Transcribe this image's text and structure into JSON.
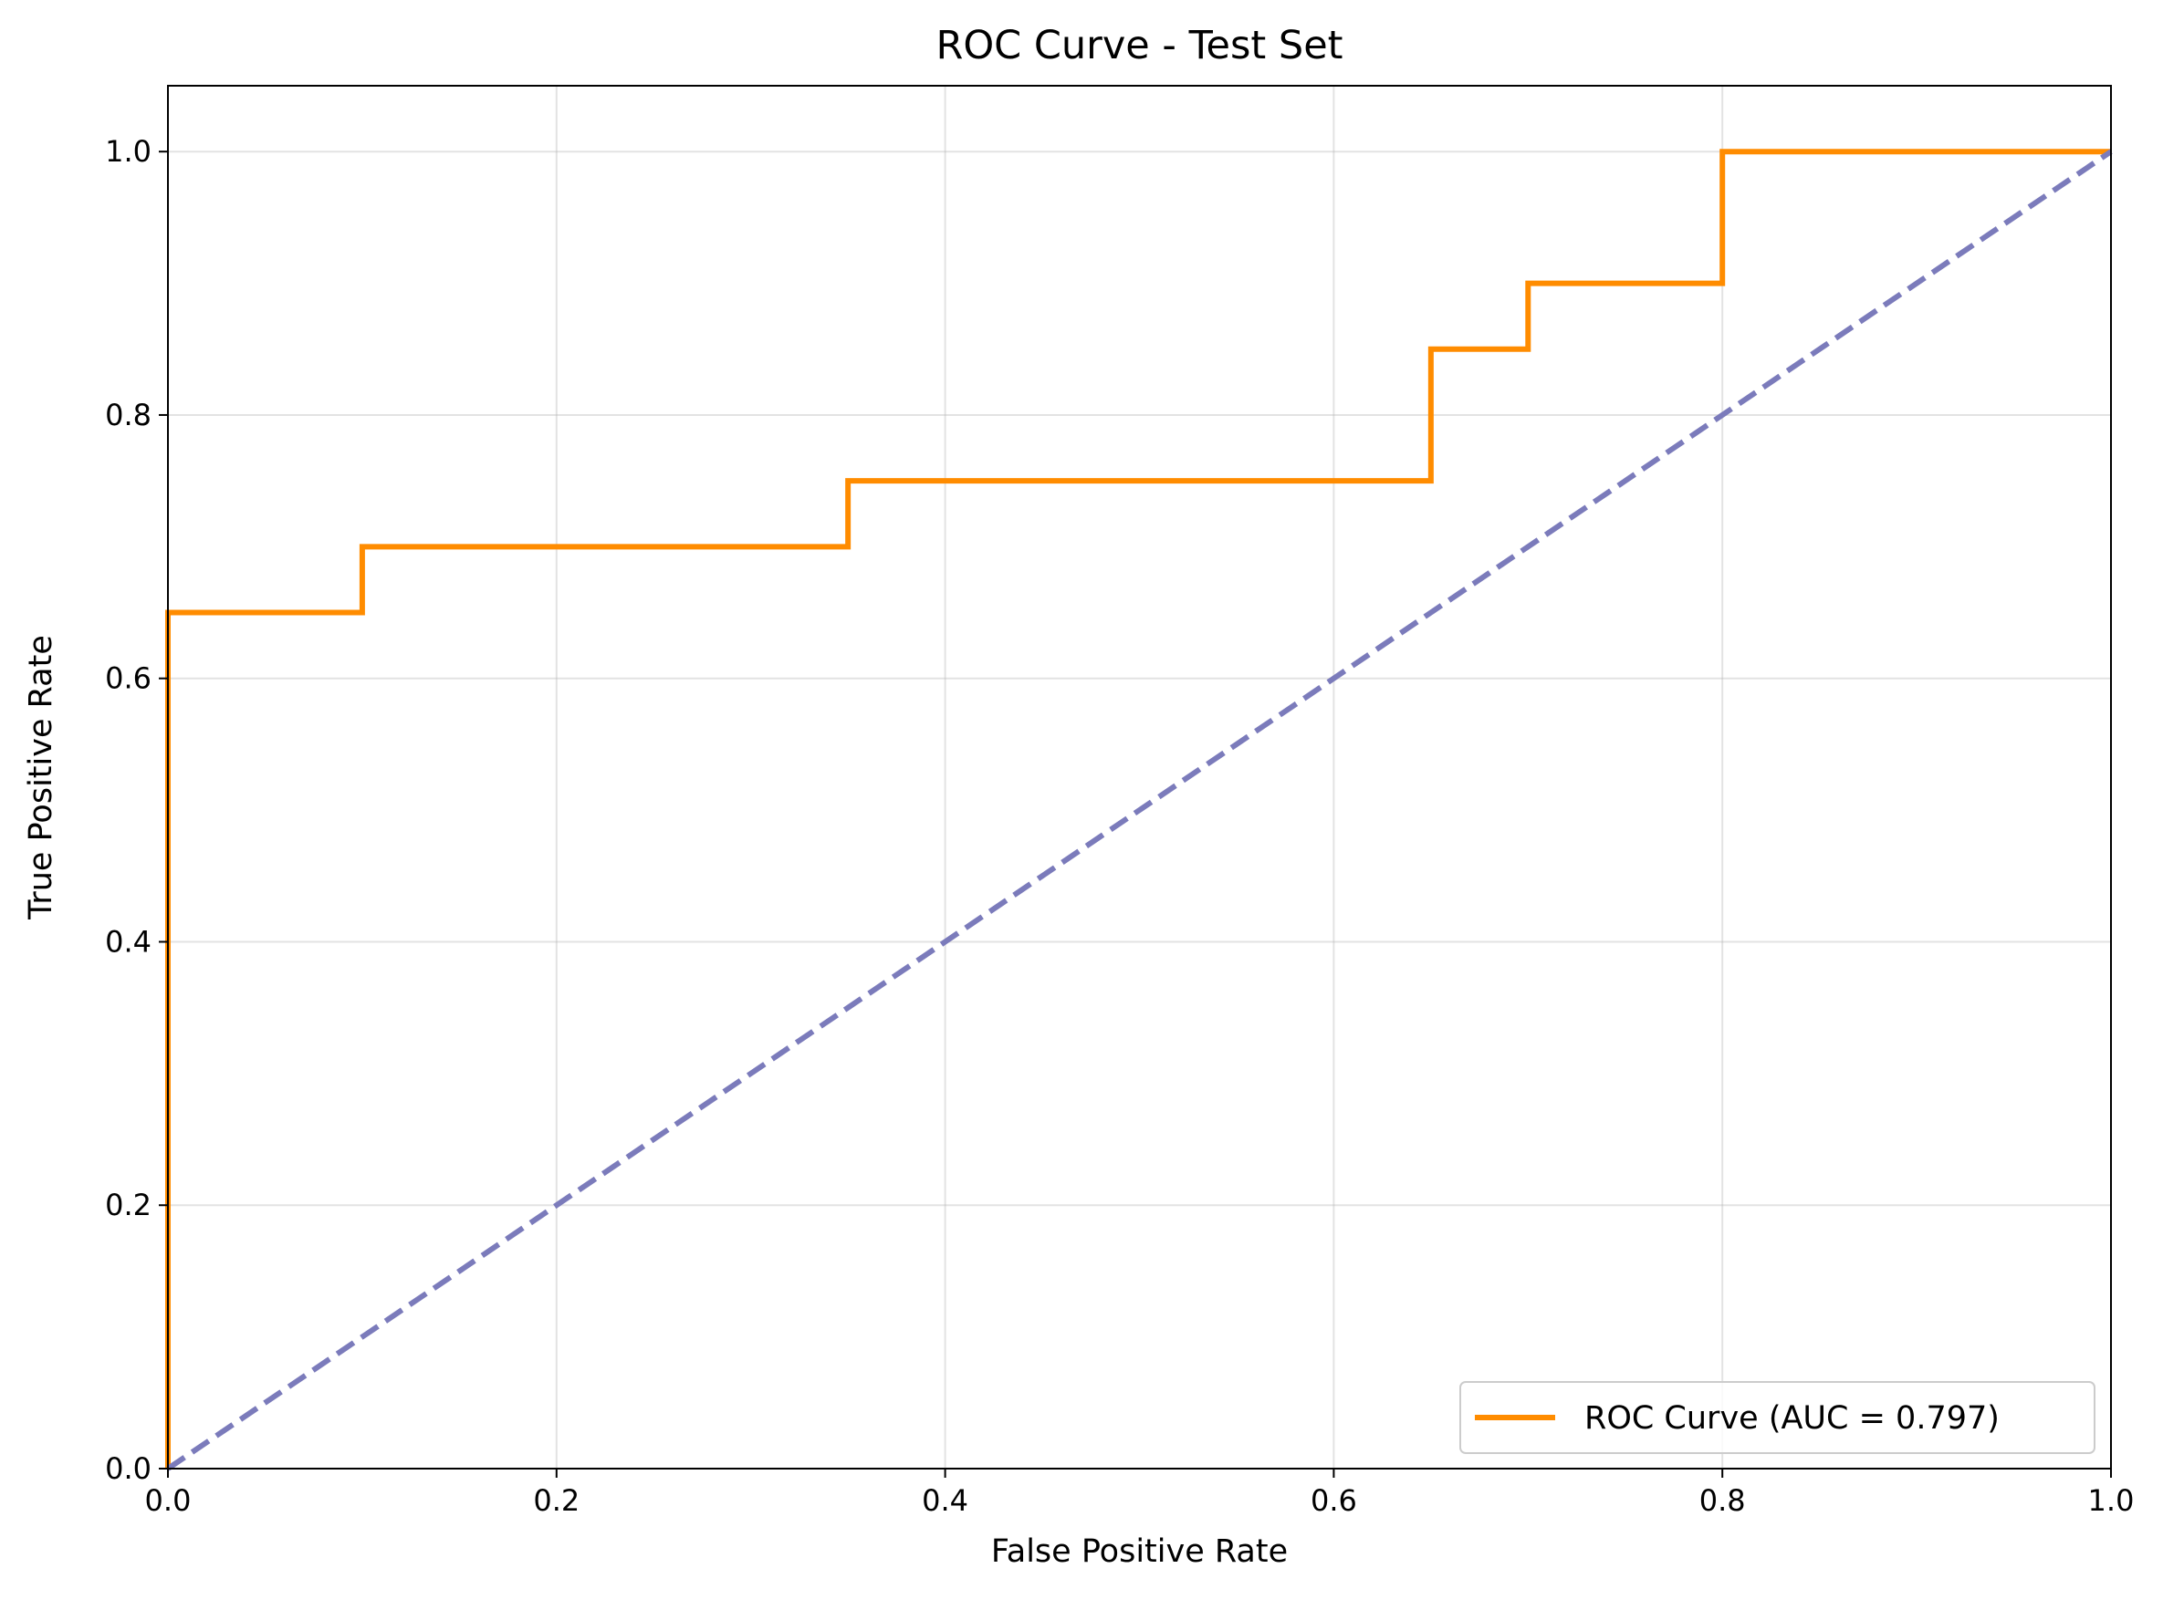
{
  "chart_data": {
    "type": "line",
    "title": "ROC Curve - Test Set",
    "xlabel": "False Positive Rate",
    "ylabel": "True Positive Rate",
    "xlim": [
      0.0,
      1.0
    ],
    "ylim": [
      0.0,
      1.05
    ],
    "x_ticks": [
      0.0,
      0.2,
      0.4,
      0.6,
      0.8,
      1.0
    ],
    "y_ticks": [
      0.0,
      0.2,
      0.4,
      0.6,
      0.8,
      1.0
    ],
    "x_tick_labels": [
      "0.0",
      "0.2",
      "0.4",
      "0.6",
      "0.8",
      "1.0"
    ],
    "y_tick_labels": [
      "0.0",
      "0.2",
      "0.4",
      "0.6",
      "0.8",
      "1.0"
    ],
    "grid": true,
    "legend_position": "lower-right",
    "series": [
      {
        "name": "ROC Curve (AUC = 0.797)",
        "color": "#ff8c00",
        "style": "solid",
        "x": [
          0.0,
          0.0,
          0.1,
          0.1,
          0.35,
          0.35,
          0.65,
          0.65,
          0.7,
          0.7,
          0.8,
          0.8,
          1.0
        ],
        "y": [
          0.0,
          0.65,
          0.65,
          0.7,
          0.7,
          0.75,
          0.75,
          0.85,
          0.85,
          0.9,
          0.9,
          1.0,
          1.0
        ]
      },
      {
        "color": "#7b7bbb",
        "style": "dashed",
        "x": [
          0.0,
          1.0
        ],
        "y": [
          0.0,
          1.0
        ]
      }
    ]
  }
}
